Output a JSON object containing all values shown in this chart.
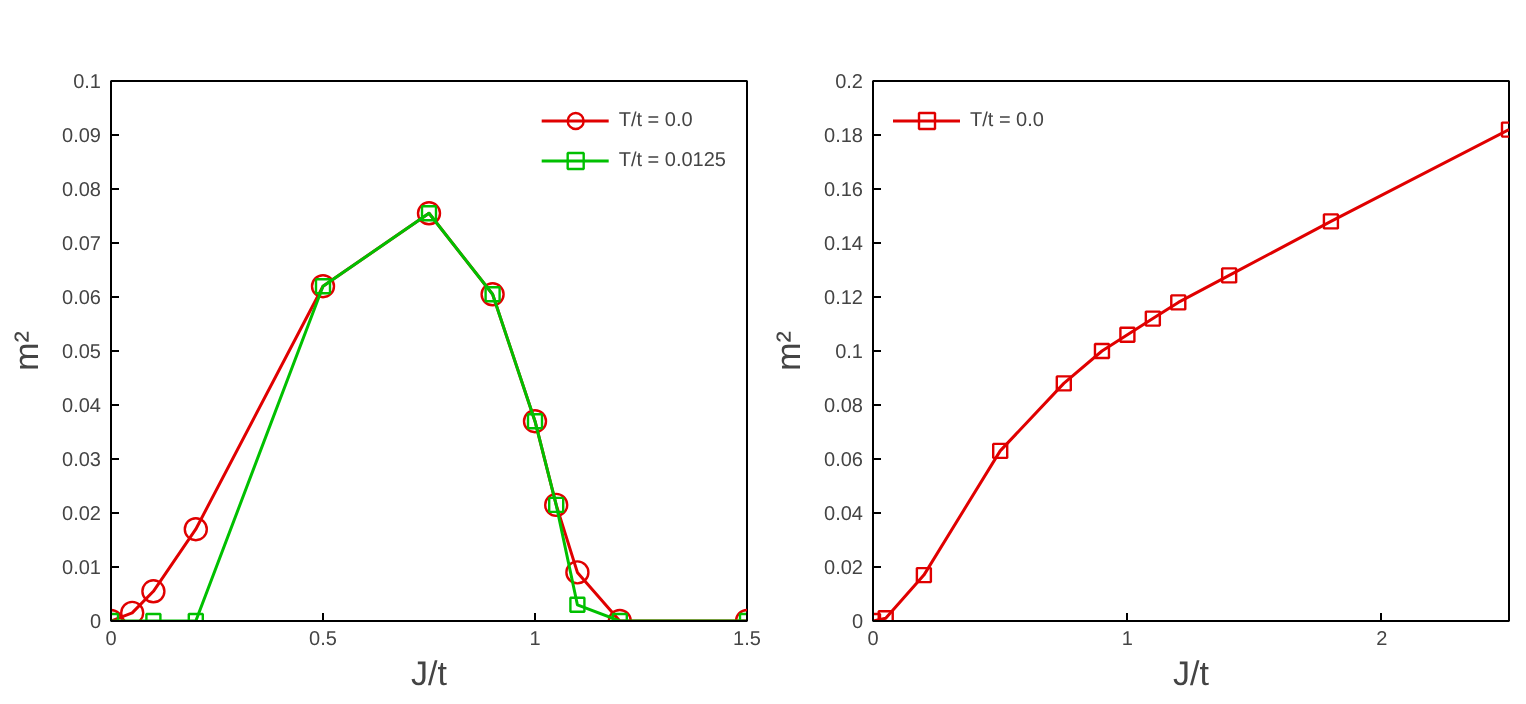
{
  "chart_data": [
    {
      "type": "line",
      "xlabel": "J/t",
      "ylabel": "m²",
      "xlim": [
        0,
        1.5
      ],
      "ylim": [
        0,
        0.1
      ],
      "xticks": [
        0,
        0.5,
        1,
        1.5
      ],
      "yticks": [
        0,
        0.01,
        0.02,
        0.03,
        0.04,
        0.05,
        0.06,
        0.07,
        0.08,
        0.09,
        0.1
      ],
      "grid": false,
      "legend": "top right",
      "series": [
        {
          "name": "T/t = 0.0",
          "color": "#e00000",
          "marker": "circle",
          "x": [
            0,
            0.05,
            0.1,
            0.2,
            0.5,
            0.75,
            0.9,
            1.0,
            1.05,
            1.1,
            1.2,
            1.5
          ],
          "values": [
            0,
            0.0015,
            0.0055,
            0.017,
            0.062,
            0.0755,
            0.0605,
            0.037,
            0.0215,
            0.009,
            0,
            0
          ]
        },
        {
          "name": "T/t = 0.0125",
          "color": "#00c000",
          "marker": "square",
          "x": [
            0,
            0.1,
            0.2,
            0.5,
            0.75,
            0.9,
            1.0,
            1.05,
            1.1,
            1.2,
            1.5
          ],
          "values": [
            0,
            0,
            0,
            0.062,
            0.0755,
            0.0605,
            0.037,
            0.0215,
            0.003,
            0,
            0
          ]
        }
      ]
    },
    {
      "type": "line",
      "xlabel": "J/t",
      "ylabel": "m²",
      "xlim": [
        0,
        2.5
      ],
      "ylim": [
        0,
        0.2
      ],
      "xticks": [
        0,
        1,
        2
      ],
      "yticks": [
        0,
        0.02,
        0.04,
        0.06,
        0.08,
        0.1,
        0.12,
        0.14,
        0.16,
        0.18,
        0.2
      ],
      "grid": false,
      "legend": "top left",
      "series": [
        {
          "name": "T/t = 0.0",
          "color": "#e00000",
          "marker": "square",
          "x": [
            0,
            0.05,
            0.2,
            0.5,
            0.75,
            0.9,
            1.0,
            1.1,
            1.2,
            1.4,
            1.8,
            2.5
          ],
          "values": [
            0,
            0.001,
            0.017,
            0.063,
            0.088,
            0.1,
            0.106,
            0.112,
            0.118,
            0.128,
            0.148,
            0.182
          ]
        }
      ]
    }
  ]
}
